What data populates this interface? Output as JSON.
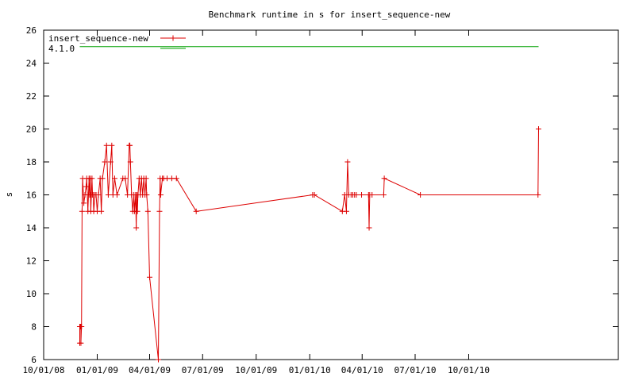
{
  "chart_data": {
    "type": "line",
    "title": "Benchmark runtime in s for insert_sequence-new",
    "ylabel": "s",
    "xlabel": "",
    "ylim": [
      6,
      26
    ],
    "y_ticks": [
      6,
      8,
      10,
      12,
      14,
      16,
      18,
      20,
      22,
      24,
      26
    ],
    "xlim": [
      "2008-10-01",
      "2011-06-15"
    ],
    "x_ticks": [
      {
        "date": "2008-10-01",
        "label": "10/01/08"
      },
      {
        "date": "2009-01-01",
        "label": "01/01/09"
      },
      {
        "date": "2009-04-01",
        "label": "04/01/09"
      },
      {
        "date": "2009-07-01",
        "label": "07/01/09"
      },
      {
        "date": "2009-10-01",
        "label": "10/01/09"
      },
      {
        "date": "2010-01-01",
        "label": "01/01/10"
      },
      {
        "date": "2010-04-01",
        "label": "04/01/10"
      },
      {
        "date": "2010-07-01",
        "label": "07/01/10"
      },
      {
        "date": "2010-10-01",
        "label": "10/01/10"
      }
    ],
    "grid": false,
    "legend_position": "top-left",
    "series": [
      {
        "name": "insert_sequence-new",
        "color": "#dd0000",
        "marker": "plus",
        "points": [
          [
            "2008-12-02",
            7
          ],
          [
            "2008-12-02",
            8
          ],
          [
            "2008-12-03",
            8
          ],
          [
            "2008-12-04",
            8
          ],
          [
            "2008-12-04",
            7
          ],
          [
            "2008-12-05",
            8
          ],
          [
            "2008-12-06",
            15
          ],
          [
            "2008-12-07",
            17
          ],
          [
            "2008-12-09",
            15.5
          ],
          [
            "2008-12-11",
            16
          ],
          [
            "2008-12-13",
            16.5
          ],
          [
            "2008-12-14",
            17
          ],
          [
            "2008-12-15",
            16
          ],
          [
            "2008-12-16",
            15
          ],
          [
            "2008-12-18",
            17
          ],
          [
            "2008-12-19",
            16
          ],
          [
            "2008-12-20",
            17
          ],
          [
            "2008-12-21",
            15
          ],
          [
            "2008-12-22",
            16
          ],
          [
            "2008-12-23",
            17
          ],
          [
            "2008-12-24",
            16
          ],
          [
            "2008-12-25",
            16
          ],
          [
            "2008-12-26",
            15
          ],
          [
            "2008-12-28",
            16
          ],
          [
            "2008-12-30",
            16
          ],
          [
            "2009-01-01",
            15
          ],
          [
            "2009-01-03",
            16
          ],
          [
            "2009-01-06",
            17
          ],
          [
            "2009-01-08",
            15
          ],
          [
            "2009-01-10",
            17
          ],
          [
            "2009-01-14",
            18
          ],
          [
            "2009-01-17",
            19
          ],
          [
            "2009-01-20",
            16
          ],
          [
            "2009-01-24",
            18
          ],
          [
            "2009-01-26",
            19
          ],
          [
            "2009-01-28",
            16
          ],
          [
            "2009-01-31",
            17
          ],
          [
            "2009-02-04",
            16
          ],
          [
            "2009-02-14",
            17
          ],
          [
            "2009-02-18",
            17
          ],
          [
            "2009-02-22",
            16
          ],
          [
            "2009-02-25",
            19
          ],
          [
            "2009-02-26",
            19
          ],
          [
            "2009-02-27",
            18
          ],
          [
            "2009-03-01",
            16
          ],
          [
            "2009-03-03",
            15
          ],
          [
            "2009-03-05",
            16
          ],
          [
            "2009-03-06",
            15
          ],
          [
            "2009-03-08",
            16
          ],
          [
            "2009-03-09",
            14
          ],
          [
            "2009-03-10",
            16
          ],
          [
            "2009-03-11",
            15
          ],
          [
            "2009-03-12",
            16
          ],
          [
            "2009-03-14",
            17
          ],
          [
            "2009-03-16",
            16
          ],
          [
            "2009-03-18",
            17
          ],
          [
            "2009-03-20",
            16
          ],
          [
            "2009-03-22",
            17
          ],
          [
            "2009-03-24",
            16
          ],
          [
            "2009-03-26",
            17
          ],
          [
            "2009-03-27",
            16
          ],
          [
            "2009-03-29",
            15
          ],
          [
            "2009-04-01",
            11
          ],
          [
            "2009-04-16",
            6
          ],
          [
            "2009-04-18",
            15
          ],
          [
            "2009-04-19",
            17
          ],
          [
            "2009-04-20",
            16
          ],
          [
            "2009-04-23",
            17
          ],
          [
            "2009-04-25",
            17
          ],
          [
            "2009-05-01",
            17
          ],
          [
            "2009-05-09",
            17
          ],
          [
            "2009-05-17",
            17
          ],
          [
            "2009-06-20",
            15
          ],
          [
            "2010-01-06",
            16
          ],
          [
            "2010-01-09",
            16
          ],
          [
            "2010-02-26",
            15
          ],
          [
            "2010-03-02",
            16
          ],
          [
            "2010-03-05",
            15
          ],
          [
            "2010-03-07",
            18
          ],
          [
            "2010-03-09",
            16
          ],
          [
            "2010-03-13",
            16
          ],
          [
            "2010-03-16",
            16
          ],
          [
            "2010-03-19",
            16
          ],
          [
            "2010-03-22",
            16
          ],
          [
            "2010-03-31",
            16
          ],
          [
            "2010-04-12",
            16
          ],
          [
            "2010-04-13",
            14
          ],
          [
            "2010-04-14",
            16
          ],
          [
            "2010-04-18",
            16
          ],
          [
            "2010-05-08",
            16
          ],
          [
            "2010-05-09",
            17
          ],
          [
            "2010-07-10",
            16
          ],
          [
            "2011-01-28",
            16
          ],
          [
            "2011-01-29",
            20
          ]
        ]
      },
      {
        "name": "4.1.0",
        "color": "#00a000",
        "marker": "none",
        "points": [
          [
            "2008-12-02",
            25
          ],
          [
            "2011-01-29",
            25
          ]
        ]
      }
    ]
  }
}
